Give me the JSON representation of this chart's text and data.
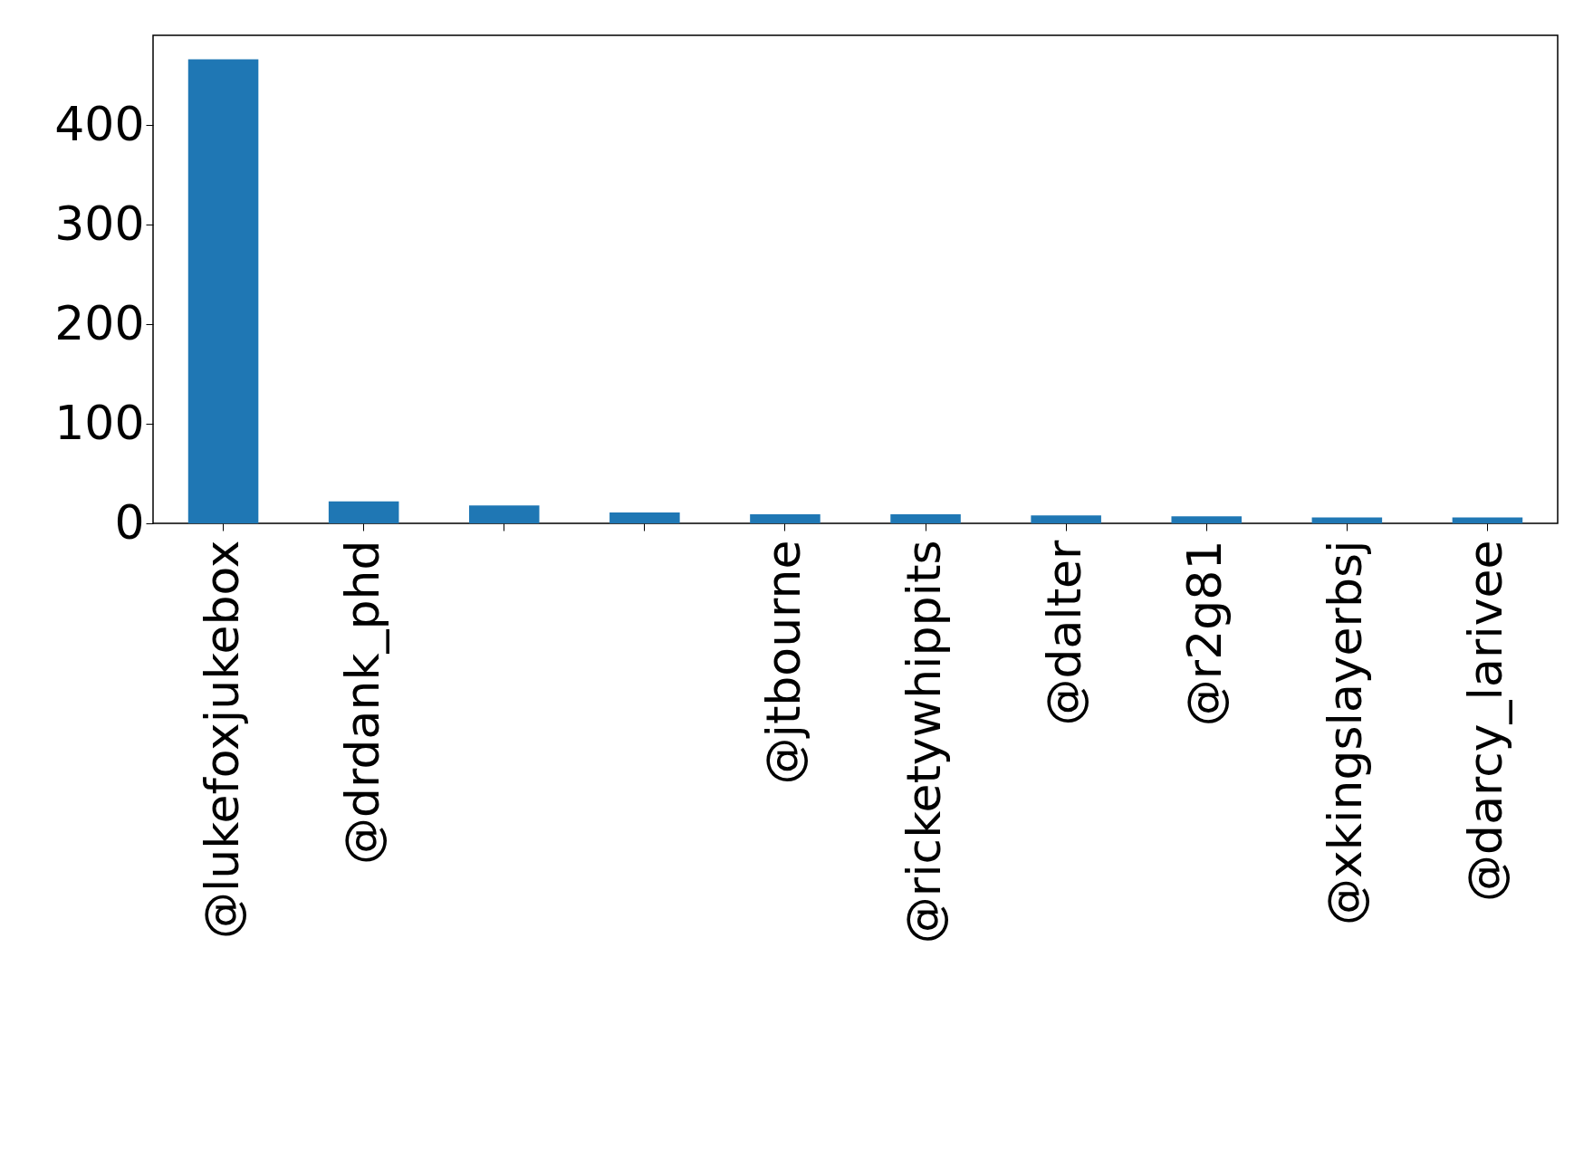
{
  "chart_data": {
    "type": "bar",
    "categories": [
      "@lukefoxjukebox",
      "@drdank_phd",
      null,
      null,
      "@jtbourne",
      "@ricketywhippits",
      "@dalter",
      "@r2g81",
      "@xkingslayerbsj",
      "@darcy_larivee"
    ],
    "values": [
      466,
      22,
      18,
      11,
      9,
      9,
      8,
      7,
      6,
      6
    ],
    "color": "#1f77b4",
    "ylim": [
      0,
      490
    ],
    "yticks": [
      0,
      100,
      200,
      300,
      400
    ],
    "grid": false
  }
}
